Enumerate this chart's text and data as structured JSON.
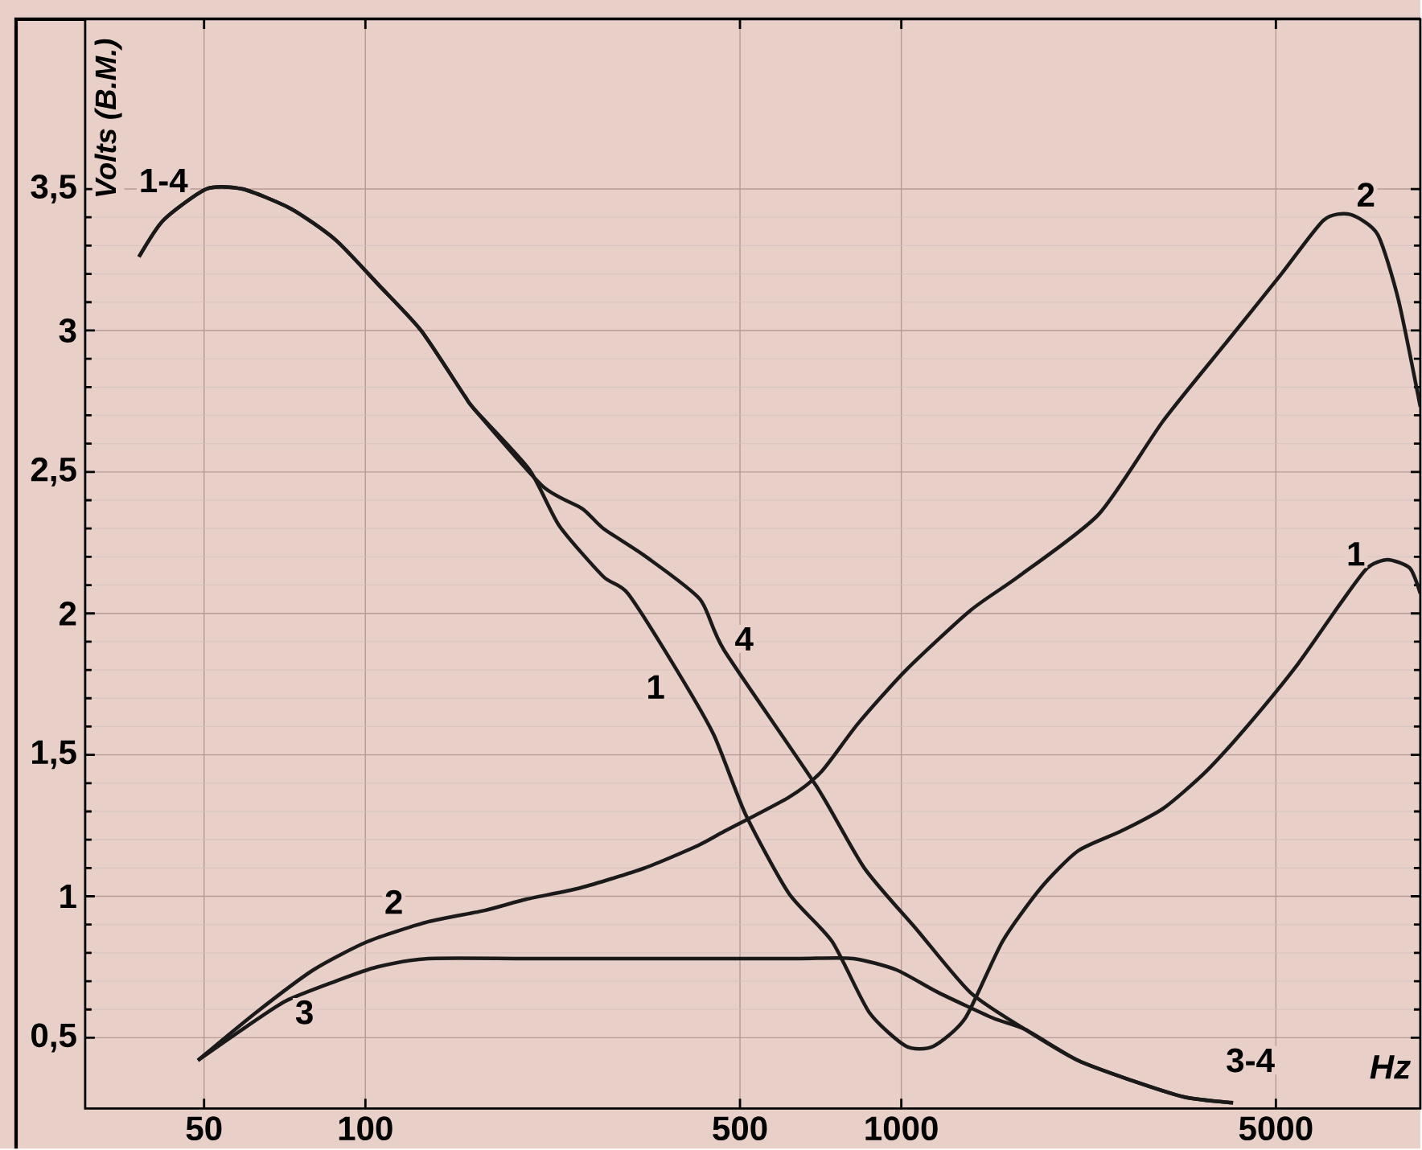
{
  "chart_data": {
    "type": "line",
    "xlabel": "Hz",
    "ylabel": "Volts (B.M.)",
    "log": "x",
    "grid": true,
    "line_style": "solid",
    "marker": "none",
    "xlim": [
      30,
      9300
    ],
    "ylim": [
      0.25,
      4.1
    ],
    "xticks": [
      50,
      100,
      500,
      1000,
      5000
    ],
    "yticks": [
      {
        "value": 0.5,
        "label": "0,5"
      },
      1,
      {
        "value": 1.5,
        "label": "1,5"
      },
      2,
      {
        "value": 2.5,
        "label": "2,5"
      },
      3,
      {
        "value": 3.5,
        "label": "3,5"
      }
    ],
    "series": [
      {
        "color": "#1a1a1a",
        "x": [
          37.8,
          42,
          50.5,
          59,
          72.7,
          88,
          106,
          127,
          153,
          160,
          202,
          230,
          278,
          309,
          381,
          447,
          512,
          617,
          743,
          871,
          1021,
          1148,
          1317,
          1544,
          1822,
          2135,
          2570,
          3080,
          3700,
          4460,
          5490,
          6570,
          7400,
          8080,
          8890,
          9300
        ],
        "values": [
          3.26,
          3.39,
          3.5,
          3.5,
          3.43,
          3.32,
          3.16,
          3.0,
          2.77,
          2.72,
          2.51,
          2.31,
          2.13,
          2.07,
          1.8,
          1.57,
          1.29,
          1.01,
          0.84,
          0.59,
          0.47,
          0.47,
          0.57,
          0.84,
          1.03,
          1.16,
          1.23,
          1.31,
          1.44,
          1.61,
          1.82,
          2.03,
          2.16,
          2.19,
          2.16,
          2.07
        ]
      },
      {
        "color": "#1a1a1a",
        "x": [
          48.7,
          62.6,
          80,
          101,
          131,
          167,
          200,
          252,
          332,
          418,
          468,
          617,
          709,
          830,
          1021,
          1345,
          1654,
          2335,
          3080,
          4050,
          5120,
          6140,
          6880,
          7740,
          8460,
          9300
        ],
        "values": [
          0.42,
          0.59,
          0.74,
          0.84,
          0.91,
          0.95,
          0.99,
          1.03,
          1.1,
          1.18,
          1.23,
          1.35,
          1.44,
          1.61,
          1.8,
          2.01,
          2.13,
          2.35,
          2.68,
          2.96,
          3.2,
          3.39,
          3.41,
          3.34,
          3.11,
          2.73
        ]
      },
      {
        "color": "#1a1a1a",
        "x": [
          48.7,
          59,
          71,
          88,
          105,
          131,
          207,
          468,
          648,
          813,
          979,
          1172,
          1481,
          1700,
          2135,
          2680,
          3380,
          4160
        ],
        "values": [
          0.42,
          0.53,
          0.63,
          0.7,
          0.75,
          0.78,
          0.78,
          0.78,
          0.78,
          0.78,
          0.74,
          0.66,
          0.57,
          0.53,
          0.42,
          0.35,
          0.29,
          0.27
        ]
      },
      {
        "color": "#1a1a1a",
        "x": [
          37.8,
          42,
          50.5,
          59,
          72.7,
          88,
          106,
          127,
          153,
          160,
          214,
          254,
          278,
          334,
          421,
          467,
          694,
          853,
          1071,
          1345,
          1700,
          2135,
          2680,
          3380,
          4160
        ],
        "values": [
          3.26,
          3.39,
          3.5,
          3.5,
          3.43,
          3.32,
          3.16,
          3.0,
          2.77,
          2.72,
          2.45,
          2.37,
          2.3,
          2.2,
          2.05,
          1.87,
          1.39,
          1.1,
          0.88,
          0.66,
          0.53,
          0.42,
          0.35,
          0.29,
          0.27
        ]
      }
    ],
    "annotations": [
      {
        "text": "1-4",
        "x": 42,
        "y": 3.53
      },
      {
        "text": "2",
        "x": 113,
        "y": 0.98
      },
      {
        "text": "3",
        "x": 77,
        "y": 0.59
      },
      {
        "text": "1",
        "x": 348,
        "y": 1.74
      },
      {
        "text": "4",
        "x": 509,
        "y": 1.91
      },
      {
        "text": "3-4",
        "x": 4480,
        "y": 0.42
      },
      {
        "text": "2",
        "x": 7360,
        "y": 3.48
      },
      {
        "text": "1",
        "x": 7050,
        "y": 2.21
      }
    ]
  }
}
